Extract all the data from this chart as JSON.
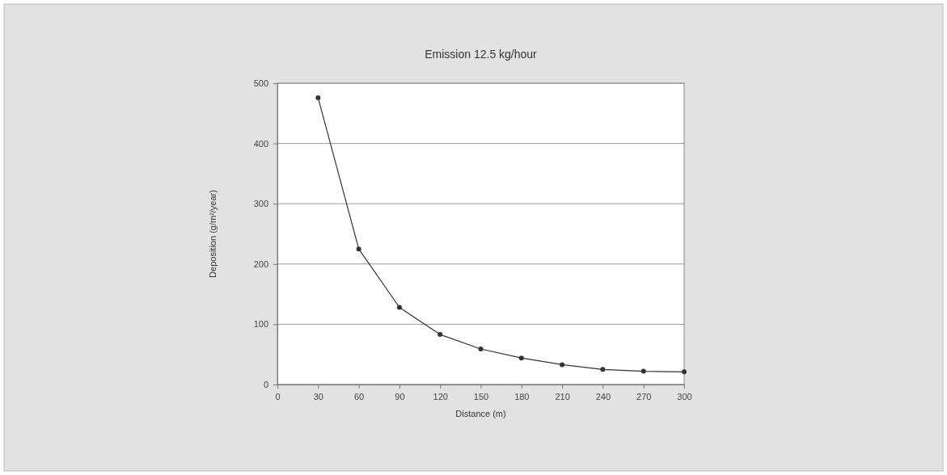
{
  "chart_data": {
    "type": "line",
    "title": "Emission 12.5 kg/hour",
    "xlabel": "Distance (m)",
    "ylabel": "Deposition (g/m²/year)",
    "x": [
      30,
      60,
      90,
      120,
      150,
      180,
      210,
      240,
      270,
      300
    ],
    "series": [
      {
        "color": "#333333",
        "values": [
          476,
          225,
          128,
          83,
          59,
          44,
          33,
          25,
          22,
          21
        ]
      }
    ],
    "xlim": [
      0,
      300
    ],
    "xticks": [
      0,
      30,
      60,
      90,
      120,
      150,
      180,
      210,
      240,
      270,
      300
    ],
    "ylim": [
      0,
      500
    ],
    "yticks": [
      0,
      100,
      200,
      300,
      400,
      500
    ],
    "grid": "y",
    "marker": "circle",
    "line_style": "solid"
  }
}
